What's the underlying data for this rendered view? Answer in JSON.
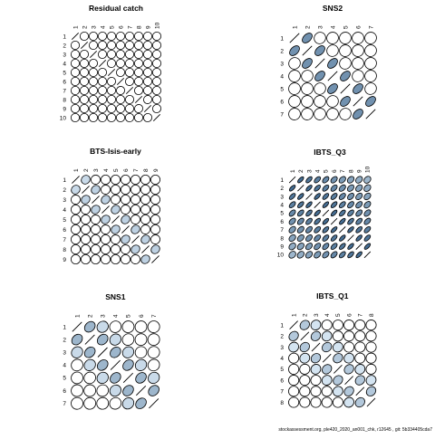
{
  "chart_data": [
    {
      "type": "heatmap",
      "title": "Residual catch",
      "labels": [
        "1",
        "2",
        "3",
        "4",
        "5",
        "6",
        "7",
        "8",
        "9",
        "10"
      ],
      "correlations": [
        [
          1,
          0.02,
          0.03,
          0.02,
          0.01,
          0.02,
          0.03,
          0.02,
          0.01,
          0.02
        ],
        [
          0.02,
          1,
          0.04,
          0.02,
          0.03,
          0.01,
          0.02,
          0.03,
          0.02,
          0.01
        ],
        [
          0.03,
          0.04,
          1,
          0.05,
          0.02,
          0.03,
          0.02,
          0.01,
          0.03,
          0.02
        ],
        [
          0.02,
          0.02,
          0.05,
          1,
          0.04,
          0.02,
          0.03,
          0.02,
          0.01,
          0.03
        ],
        [
          0.01,
          0.03,
          0.02,
          0.04,
          1,
          0.05,
          0.02,
          0.03,
          0.02,
          0.01
        ],
        [
          0.02,
          0.01,
          0.03,
          0.02,
          0.05,
          1,
          0.06,
          0.02,
          0.03,
          0.02
        ],
        [
          0.03,
          0.02,
          0.02,
          0.03,
          0.02,
          0.06,
          1,
          0.05,
          0.02,
          0.03
        ],
        [
          0.02,
          0.03,
          0.01,
          0.02,
          0.03,
          0.02,
          0.05,
          1,
          0.08,
          0.03
        ],
        [
          0.01,
          0.02,
          0.03,
          0.01,
          0.02,
          0.03,
          0.02,
          0.08,
          1,
          0.05
        ],
        [
          0.02,
          0.01,
          0.02,
          0.03,
          0.01,
          0.02,
          0.03,
          0.03,
          0.05,
          1
        ]
      ]
    },
    {
      "type": "heatmap",
      "title": "SNS2",
      "labels": [
        "1",
        "2",
        "3",
        "4",
        "5",
        "6",
        "7"
      ],
      "correlations": [
        [
          1,
          0.6,
          0.1,
          0.05,
          0.05,
          0.05,
          0.05
        ],
        [
          0.6,
          1,
          0.6,
          0.1,
          0.05,
          0.05,
          0.05
        ],
        [
          0.1,
          0.6,
          1,
          0.6,
          0.1,
          0.05,
          0.05
        ],
        [
          0.05,
          0.1,
          0.6,
          1,
          0.6,
          0.1,
          0.05
        ],
        [
          0.05,
          0.05,
          0.1,
          0.6,
          1,
          0.6,
          0.1
        ],
        [
          0.05,
          0.05,
          0.05,
          0.1,
          0.6,
          1,
          0.6
        ],
        [
          0.05,
          0.05,
          0.05,
          0.05,
          0.1,
          0.6,
          1
        ]
      ]
    },
    {
      "type": "heatmap",
      "title": "BTS-Isis-early",
      "labels": [
        "1",
        "2",
        "3",
        "4",
        "5",
        "6",
        "7",
        "8",
        "9"
      ],
      "correlations": [
        [
          1,
          0.2,
          0.05,
          0.02,
          0.02,
          0.02,
          0.02,
          0.02,
          0.02
        ],
        [
          0.2,
          1,
          0.25,
          0.05,
          0.02,
          0.02,
          0.02,
          0.02,
          0.02
        ],
        [
          0.05,
          0.25,
          1,
          0.25,
          0.05,
          0.02,
          0.02,
          0.02,
          0.02
        ],
        [
          0.02,
          0.05,
          0.25,
          1,
          0.25,
          0.05,
          0.02,
          0.02,
          0.02
        ],
        [
          0.02,
          0.02,
          0.05,
          0.25,
          1,
          0.25,
          0.05,
          0.02,
          0.02
        ],
        [
          0.02,
          0.02,
          0.02,
          0.05,
          0.25,
          1,
          0.25,
          0.05,
          0.02
        ],
        [
          0.02,
          0.02,
          0.02,
          0.02,
          0.05,
          0.25,
          1,
          0.25,
          0.05
        ],
        [
          0.02,
          0.02,
          0.02,
          0.02,
          0.02,
          0.05,
          0.25,
          1,
          0.25
        ],
        [
          0.02,
          0.02,
          0.02,
          0.02,
          0.02,
          0.02,
          0.05,
          0.25,
          1
        ]
      ]
    },
    {
      "type": "heatmap",
      "title": "IBTS_Q3",
      "labels": [
        "1",
        "2",
        "3",
        "4",
        "5",
        "6",
        "7",
        "8",
        "9",
        "10"
      ],
      "correlations": [
        [
          1,
          0.8,
          0.75,
          0.7,
          0.65,
          0.6,
          0.55,
          0.5,
          0.45,
          0.4
        ],
        [
          0.8,
          1,
          0.8,
          0.75,
          0.7,
          0.65,
          0.6,
          0.55,
          0.5,
          0.45
        ],
        [
          0.75,
          0.8,
          1,
          0.8,
          0.75,
          0.7,
          0.65,
          0.6,
          0.55,
          0.5
        ],
        [
          0.7,
          0.75,
          0.8,
          1,
          0.8,
          0.75,
          0.7,
          0.65,
          0.6,
          0.55
        ],
        [
          0.65,
          0.7,
          0.75,
          0.8,
          1,
          0.8,
          0.75,
          0.7,
          0.65,
          0.6
        ],
        [
          0.6,
          0.65,
          0.7,
          0.75,
          0.8,
          1,
          0.8,
          0.75,
          0.7,
          0.65
        ],
        [
          0.55,
          0.6,
          0.65,
          0.7,
          0.75,
          0.8,
          1,
          0.8,
          0.75,
          0.7
        ],
        [
          0.5,
          0.55,
          0.6,
          0.65,
          0.7,
          0.75,
          0.8,
          1,
          0.8,
          0.75
        ],
        [
          0.45,
          0.5,
          0.55,
          0.6,
          0.65,
          0.7,
          0.75,
          0.8,
          1,
          0.8
        ],
        [
          0.4,
          0.45,
          0.5,
          0.55,
          0.6,
          0.65,
          0.7,
          0.75,
          0.8,
          1
        ]
      ]
    },
    {
      "type": "heatmap",
      "title": "SNS1",
      "labels": [
        "1",
        "2",
        "3",
        "4",
        "5",
        "6",
        "7"
      ],
      "correlations": [
        [
          1,
          0.4,
          0.2,
          0.1,
          0.05,
          0.05,
          0.02
        ],
        [
          0.4,
          1,
          0.4,
          0.2,
          0.1,
          0.05,
          0.05
        ],
        [
          0.2,
          0.4,
          1,
          0.4,
          0.2,
          0.1,
          0.05
        ],
        [
          0.1,
          0.2,
          0.4,
          1,
          0.4,
          0.2,
          0.1
        ],
        [
          0.05,
          0.1,
          0.2,
          0.4,
          1,
          0.4,
          0.2
        ],
        [
          0.05,
          0.05,
          0.1,
          0.2,
          0.4,
          1,
          0.4
        ],
        [
          0.02,
          0.05,
          0.05,
          0.1,
          0.2,
          0.4,
          1
        ]
      ]
    },
    {
      "type": "heatmap",
      "title": "IBTS_Q1",
      "labels": [
        "1",
        "2",
        "3",
        "4",
        "5",
        "6",
        "7",
        "8"
      ],
      "correlations": [
        [
          1,
          0.3,
          0.15,
          0.05,
          0.03,
          0.02,
          0.02,
          0.02
        ],
        [
          0.3,
          1,
          0.3,
          0.15,
          0.05,
          0.03,
          0.02,
          0.02
        ],
        [
          0.15,
          0.3,
          1,
          0.3,
          0.15,
          0.05,
          0.03,
          0.02
        ],
        [
          0.05,
          0.15,
          0.3,
          1,
          0.3,
          0.15,
          0.05,
          0.03
        ],
        [
          0.03,
          0.05,
          0.15,
          0.3,
          1,
          0.3,
          0.15,
          0.05
        ],
        [
          0.02,
          0.03,
          0.05,
          0.15,
          0.3,
          1,
          0.3,
          0.15
        ],
        [
          0.02,
          0.02,
          0.03,
          0.05,
          0.15,
          0.3,
          1,
          0.3
        ],
        [
          0.02,
          0.02,
          0.02,
          0.03,
          0.05,
          0.15,
          0.3,
          1
        ]
      ]
    }
  ],
  "colors": {
    "fill_light": "#dbe9f5",
    "fill_dark": "#1f4e79",
    "outline": "#000000"
  },
  "footer": "stockassessment.org, ple420_2020_an001_chk, r12645 , git: 5b334405cda7"
}
